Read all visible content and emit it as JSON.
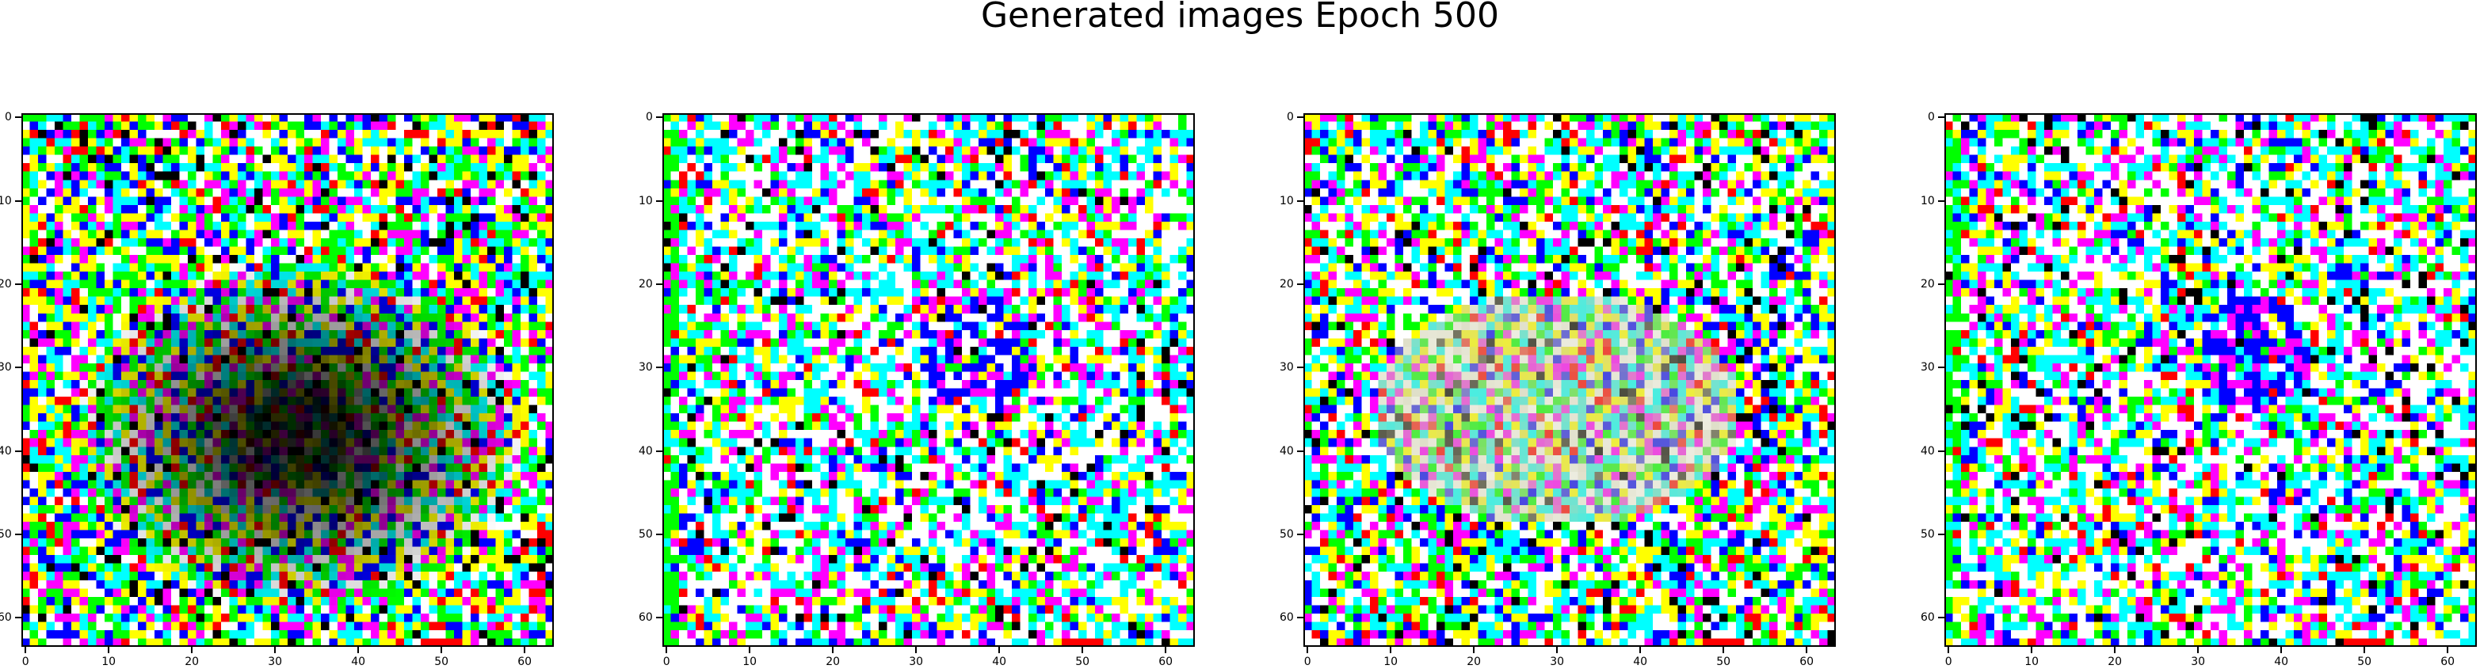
{
  "title": "Generated images Epoch 500",
  "chart_data": {
    "type": "heatmap",
    "grid_size": 64,
    "x_ticks": [
      "0",
      "10",
      "20",
      "30",
      "40",
      "50",
      "60"
    ],
    "y_ticks": [
      "0",
      "10",
      "20",
      "30",
      "40",
      "50",
      "60"
    ],
    "xlim": [
      -0.5,
      63.5
    ],
    "ylim": [
      63.5,
      -0.5
    ],
    "grid": false,
    "palette": [
      "#ffffff",
      "#00ffff",
      "#ff00ff",
      "#ffff00",
      "#0000ff",
      "#00ff00",
      "#ff0000",
      "#000000"
    ],
    "panels": [
      {
        "index": 1,
        "style": "dark-center"
      },
      {
        "index": 2,
        "style": "bright-blue-cluster"
      },
      {
        "index": 3,
        "style": "mixed-faded"
      },
      {
        "index": 4,
        "style": "bright-blue-cluster"
      }
    ]
  }
}
